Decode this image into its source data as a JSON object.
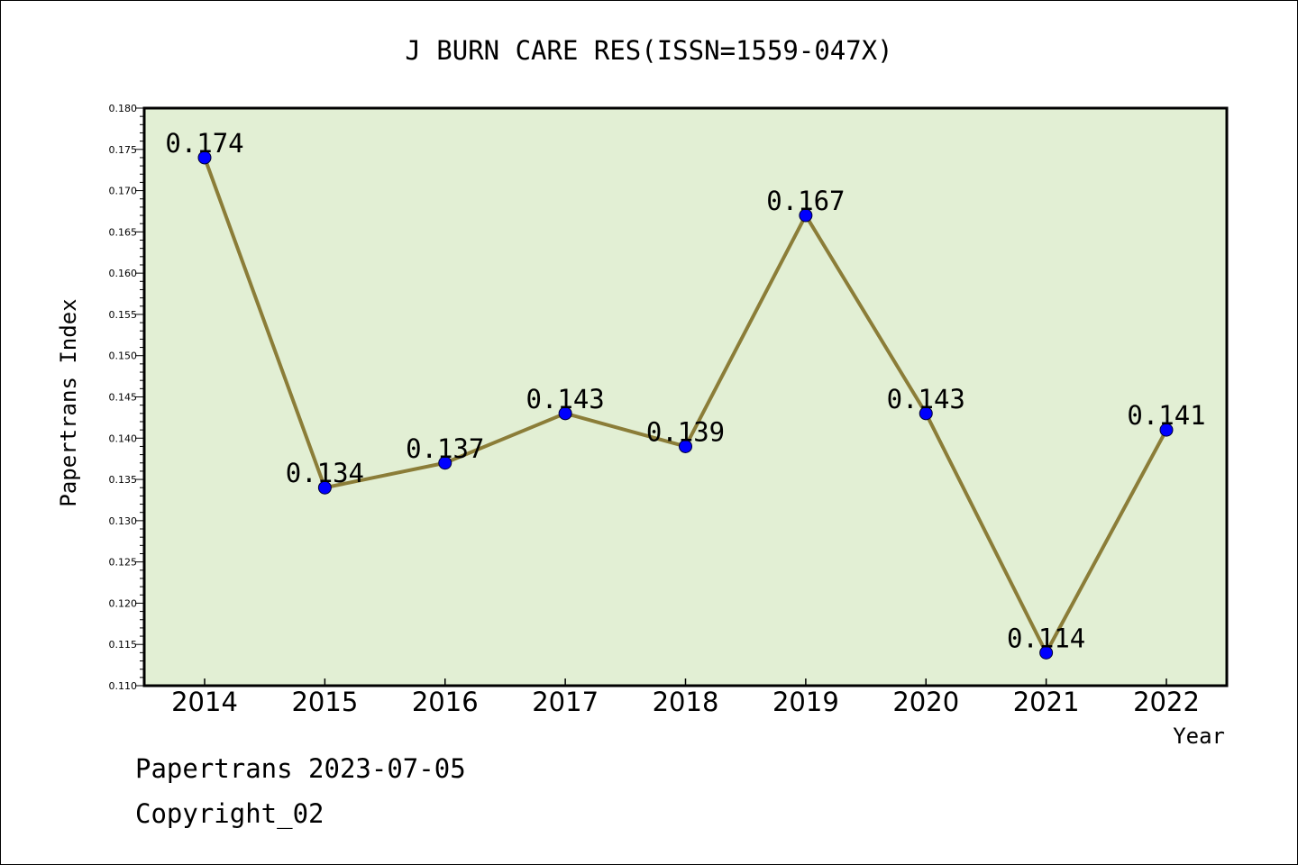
{
  "chart_data": {
    "type": "line",
    "title": "J BURN CARE RES(ISSN=1559-047X)",
    "xlabel": "Year",
    "ylabel": "Papertrans Index",
    "categories": [
      "2014",
      "2015",
      "2016",
      "2017",
      "2018",
      "2019",
      "2020",
      "2021",
      "2022"
    ],
    "values": [
      0.174,
      0.134,
      0.137,
      0.143,
      0.139,
      0.167,
      0.143,
      0.114,
      0.141
    ],
    "data_labels": [
      "0.174",
      "0.134",
      "0.137",
      "0.143",
      "0.139",
      "0.167",
      "0.143",
      "0.114",
      "0.141"
    ],
    "yticks": [
      "0.110",
      "0.115",
      "0.120",
      "0.125",
      "0.130",
      "0.135",
      "0.140",
      "0.145",
      "0.150",
      "0.155",
      "0.160",
      "0.165",
      "0.170",
      "0.175",
      "0.180"
    ],
    "ylim": [
      0.11,
      0.18
    ],
    "grid": false,
    "legend": "none",
    "colors": {
      "plot_background": "#e2efd4",
      "line": "#8b7d38",
      "marker": "#0000ff",
      "axes": "#000000"
    }
  },
  "footer": {
    "date_line": "Papertrans 2023-07-05",
    "copyright": "Copyright_02"
  }
}
